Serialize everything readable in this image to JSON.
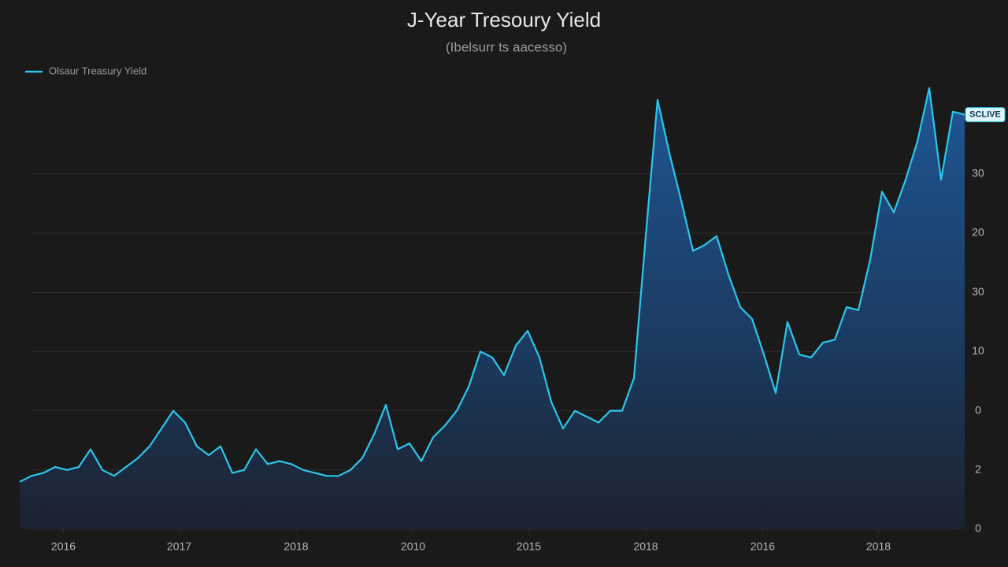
{
  "chart_data": {
    "type": "area",
    "title": "J-Year Tresoury Yield",
    "subtitle": "(Ibelsurr ts aacesso)",
    "annotation": "SCLIVE",
    "series": [
      {
        "name": "Olsaur Treasury Yield",
        "color": "#2cc6ea",
        "values": [
          1.6,
          1.8,
          1.9,
          2.1,
          2.0,
          2.1,
          2.7,
          2.0,
          1.8,
          2.1,
          2.4,
          2.8,
          3.4,
          4.0,
          3.6,
          2.8,
          2.5,
          2.8,
          1.9,
          2.0,
          2.7,
          2.2,
          2.3,
          2.2,
          2.0,
          1.9,
          1.8,
          1.8,
          2.0,
          2.4,
          3.2,
          4.2,
          2.7,
          2.9,
          2.3,
          3.1,
          3.5,
          4.0,
          4.8,
          6.0,
          5.8,
          5.2,
          6.2,
          6.7,
          5.8,
          4.3,
          3.4,
          4.0,
          3.8,
          3.6,
          4.0,
          4.0,
          5.1,
          9.9,
          14.5,
          12.7,
          11.1,
          9.4,
          9.6,
          9.9,
          8.6,
          7.5,
          7.1,
          5.9,
          4.6,
          7.0,
          5.9,
          5.8,
          6.3,
          6.4,
          7.5,
          7.4,
          9.1,
          11.4,
          10.7,
          11.8,
          13.1,
          14.9,
          11.8,
          14.1,
          14.0
        ]
      }
    ],
    "x": [
      0,
      1,
      2,
      3,
      4,
      5,
      6,
      7,
      8,
      9,
      10,
      11,
      12,
      13,
      14,
      15,
      16,
      17,
      18,
      19,
      20,
      21,
      22,
      23,
      24,
      25,
      26,
      27,
      28,
      29,
      30,
      31,
      32,
      33,
      34,
      35,
      36,
      37,
      38,
      39,
      40,
      41,
      42,
      43,
      44,
      45,
      46,
      47,
      48,
      49,
      50,
      51,
      52,
      53,
      54,
      55,
      56,
      57,
      58,
      59,
      60,
      61,
      62,
      63,
      64,
      65,
      66,
      67,
      68,
      69,
      70,
      71,
      72,
      73,
      74,
      75,
      76,
      77,
      78,
      79,
      80
    ],
    "xlim": [
      0,
      80
    ],
    "xticks": [
      {
        "value": 3.7,
        "label": "2016"
      },
      {
        "value": 13.5,
        "label": "2017"
      },
      {
        "value": 23.4,
        "label": "2018"
      },
      {
        "value": 33.3,
        "label": "2010"
      },
      {
        "value": 43.1,
        "label": "2015"
      },
      {
        "value": 53,
        "label": "2018"
      },
      {
        "value": 62.9,
        "label": "2016"
      },
      {
        "value": 72.7,
        "label": "2018"
      }
    ],
    "ylim": [
      0,
      15
    ],
    "yticks": [
      0,
      2,
      {
        "value": 4,
        "label": "0"
      },
      {
        "value": 6,
        "label": "10"
      },
      {
        "value": 8,
        "label": "30"
      },
      {
        "value": 10,
        "label": "20"
      },
      {
        "value": 12,
        "label": "30"
      }
    ],
    "y_axis_side": "right",
    "grid": true,
    "legend": "top-left"
  }
}
